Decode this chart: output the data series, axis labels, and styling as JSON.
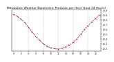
{
  "title": "Milwaukee Weather Barometric Pressure per Hour (Last 24 Hours)",
  "hours": [
    0,
    1,
    2,
    3,
    4,
    5,
    6,
    7,
    8,
    9,
    10,
    11,
    12,
    13,
    14,
    15,
    16,
    17,
    18,
    19,
    20,
    21,
    22,
    23
  ],
  "pressure": [
    29.92,
    29.88,
    29.82,
    29.75,
    29.65,
    29.55,
    29.45,
    29.38,
    29.3,
    29.25,
    29.22,
    29.2,
    29.19,
    29.21,
    29.24,
    29.28,
    29.33,
    29.4,
    29.5,
    29.6,
    29.68,
    29.76,
    29.83,
    29.9
  ],
  "line_color": "#cc0000",
  "marker_color": "#000000",
  "bg_color": "#ffffff",
  "grid_color": "#999999",
  "ylim": [
    29.15,
    30.02
  ],
  "yticks": [
    29.2,
    29.3,
    29.4,
    29.5,
    29.6,
    29.7,
    29.8,
    29.9,
    30.0
  ],
  "xticks": [
    0,
    2,
    4,
    6,
    8,
    10,
    12,
    14,
    16,
    18,
    20,
    22
  ],
  "title_fontsize": 3.2,
  "tick_fontsize": 2.2,
  "line_width": 0.5,
  "marker_size": 1.8,
  "grid_lw": 0.25
}
